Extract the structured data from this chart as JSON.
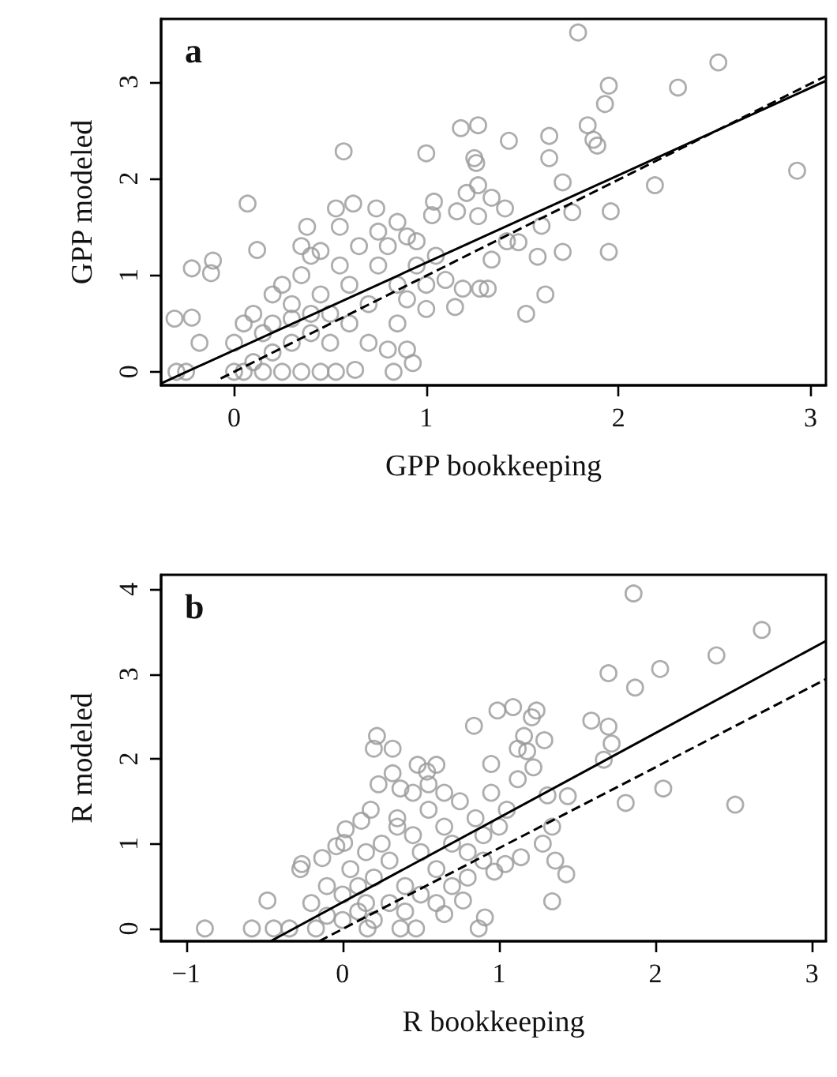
{
  "chart_data": [
    {
      "type": "scatter",
      "title": "a",
      "xlabel": "GPP bookkeeping",
      "ylabel": "GPP modeled",
      "xlim": [
        -0.38,
        3.08
      ],
      "ylim": [
        -0.14,
        3.65
      ],
      "xticks": [
        0,
        1,
        2,
        3
      ],
      "yticks": [
        0,
        1,
        2,
        3
      ],
      "grid": false,
      "series": [
        {
          "marker": "circle",
          "color": "#999999",
          "x": [
            1.79,
            2.52,
            2.31,
            1.95,
            1.93,
            1.84,
            1.87,
            1.89,
            2.93,
            2.19,
            1.96,
            1.95,
            1.71,
            1.62,
            1.52,
            1.43,
            1.64,
            1.64,
            1.71,
            1.76,
            1.6,
            1.58,
            1.18,
            1.27,
            1.25,
            1.26,
            1.0,
            0.57,
            1.27,
            1.21,
            1.34,
            1.41,
            1.27,
            1.16,
            1.04,
            1.03,
            1.42,
            1.48,
            1.34,
            1.28,
            1.32,
            1.19,
            1.15,
            0.07,
            0.53,
            0.62,
            0.74,
            0.38,
            0.12,
            -0.11,
            -0.22,
            -0.12,
            -0.31,
            -0.22,
            -0.18,
            -0.3,
            -0.25,
            0.93,
            0.83,
            0.9,
            0.8,
            0.63,
            0.53,
            0.0,
            0.05,
            0.1,
            0.15,
            0.2,
            0.25,
            0.3,
            0.35,
            0.4,
            0.45,
            0.5,
            0.55,
            0.6,
            0.65,
            0.7,
            0.75,
            0.8,
            0.85,
            0.9,
            0.95,
            1.0,
            1.05,
            0.3,
            0.4,
            0.2,
            0.1,
            0.0,
            0.05,
            0.15,
            0.25,
            0.35,
            0.45,
            0.4,
            0.6,
            0.7,
            0.5,
            0.85,
            0.9,
            1.1,
            1.0,
            0.2,
            0.3,
            0.45,
            0.35,
            0.55,
            0.75,
            0.85,
            0.95
          ],
          "values": [
            3.51,
            3.2,
            2.94,
            2.96,
            2.77,
            2.55,
            2.4,
            2.34,
            2.08,
            1.93,
            1.66,
            1.24,
            1.24,
            0.8,
            0.6,
            2.39,
            2.44,
            2.21,
            1.96,
            1.65,
            1.51,
            1.19,
            2.52,
            2.55,
            2.21,
            2.16,
            2.26,
            2.28,
            1.93,
            1.85,
            1.8,
            1.69,
            1.61,
            1.66,
            1.76,
            1.62,
            1.35,
            1.34,
            1.16,
            0.86,
            0.86,
            0.86,
            0.67,
            1.74,
            1.69,
            1.74,
            1.69,
            1.5,
            1.26,
            1.15,
            1.07,
            1.02,
            0.55,
            0.56,
            0.3,
            0.0,
            0.0,
            0.09,
            0.0,
            0.23,
            0.23,
            0.02,
            0.0,
            0.3,
            0.5,
            0.6,
            0.4,
            0.8,
            0.9,
            0.7,
            1.0,
            1.2,
            0.8,
            0.6,
            1.1,
            0.9,
            1.3,
            0.7,
            1.1,
            1.3,
            0.9,
            1.4,
            1.1,
            0.9,
            1.2,
            0.3,
            0.4,
            0.2,
            0.1,
            0.0,
            0.0,
            0.0,
            0.0,
            0.0,
            0.0,
            0.6,
            0.5,
            0.3,
            0.3,
            0.5,
            0.75,
            0.95,
            0.65,
            0.5,
            0.55,
            1.25,
            1.3,
            1.5,
            1.45,
            1.55,
            1.35
          ]
        },
        {
          "type": "line",
          "line_style": "solid",
          "marker": "none",
          "color": "#000000",
          "x": [
            -0.38,
            3.08
          ],
          "values": [
            -0.12,
            3.01
          ]
        },
        {
          "type": "line",
          "line_style": "dashed",
          "marker": "none",
          "color": "#000000",
          "x": [
            -0.07,
            3.08
          ],
          "values": [
            -0.07,
            3.06
          ]
        }
      ]
    },
    {
      "type": "scatter",
      "title": "b",
      "xlabel": "R bookkeeping",
      "ylabel": "R modeled",
      "xlim": [
        -1.16,
        3.09
      ],
      "ylim": [
        -0.15,
        4.17
      ],
      "xticks": [
        -1,
        0,
        1,
        2,
        3
      ],
      "yticks": [
        0,
        1,
        2,
        3,
        4
      ],
      "grid": false,
      "series": [
        {
          "marker": "circle",
          "color": "#999999",
          "x": [
            1.86,
            2.68,
            2.39,
            2.03,
            1.7,
            1.87,
            1.59,
            1.7,
            1.72,
            1.67,
            1.81,
            2.05,
            2.51,
            1.09,
            0.99,
            1.24,
            1.21,
            0.84,
            1.16,
            1.29,
            1.12,
            1.18,
            1.22,
            0.95,
            1.12,
            1.44,
            1.31,
            1.34,
            1.28,
            1.36,
            1.43,
            1.34,
            0.91,
            0.87,
            0.22,
            0.2,
            0.32,
            0.32,
            0.37,
            0.23,
            0.48,
            0.6,
            0.54,
            -0.88,
            -0.58,
            -0.44,
            -0.48,
            -0.26,
            -0.27,
            -0.13,
            0.02,
            0.12,
            0.18,
            -0.04,
            0.01,
            0.65,
            0.77,
            0.97,
            1.04,
            1.14,
            0.47,
            0.37,
            0.16,
            -0.17,
            -0.34,
            -0.2,
            -0.1,
            0.0,
            0.05,
            0.1,
            0.15,
            0.2,
            0.25,
            0.3,
            0.35,
            0.4,
            0.45,
            0.5,
            0.55,
            0.6,
            0.65,
            0.7,
            0.75,
            0.8,
            0.85,
            0.9,
            0.95,
            1.0,
            1.05,
            0.3,
            0.4,
            0.1,
            0.2,
            0.5,
            0.6,
            0.7,
            0.8,
            0.9,
            0.45,
            0.55,
            0.65,
            0.35,
            0.0,
            -0.1,
            0.15
          ],
          "values": [
            3.95,
            3.52,
            3.22,
            3.06,
            3.01,
            2.84,
            2.45,
            2.38,
            2.18,
            1.99,
            1.48,
            1.65,
            1.46,
            2.61,
            2.57,
            2.57,
            2.49,
            2.39,
            2.27,
            2.22,
            2.12,
            2.09,
            1.9,
            1.94,
            1.76,
            1.56,
            1.57,
            1.2,
            1.0,
            0.8,
            0.64,
            0.32,
            0.13,
            0.0,
            2.27,
            2.12,
            2.12,
            1.83,
            1.65,
            1.7,
            1.93,
            1.93,
            1.85,
            0.0,
            0.0,
            0.0,
            0.33,
            0.76,
            0.7,
            0.83,
            1.17,
            1.27,
            1.4,
            0.97,
            1.01,
            0.17,
            0.33,
            0.67,
            0.76,
            0.84,
            0.0,
            0.0,
            0.0,
            0.0,
            0.0,
            0.3,
            0.5,
            0.4,
            0.7,
            0.2,
            0.9,
            0.6,
            1.0,
            0.8,
            1.2,
            0.5,
            1.1,
            0.9,
            1.4,
            0.7,
            1.2,
            1.0,
            1.5,
            0.9,
            1.3,
            1.1,
            1.6,
            1.2,
            1.4,
            0.3,
            0.2,
            0.5,
            0.1,
            0.4,
            0.3,
            0.5,
            0.6,
            0.8,
            1.6,
            1.7,
            1.6,
            1.3,
            0.1,
            0.15,
            0.3
          ]
        },
        {
          "type": "line",
          "line_style": "solid",
          "marker": "none",
          "color": "#000000",
          "x": [
            -0.46,
            3.09
          ],
          "values": [
            -0.15,
            3.39
          ]
        },
        {
          "type": "line",
          "line_style": "dashed",
          "marker": "none",
          "color": "#000000",
          "x": [
            -0.15,
            3.09
          ],
          "values": [
            -0.15,
            2.94
          ]
        }
      ]
    }
  ]
}
